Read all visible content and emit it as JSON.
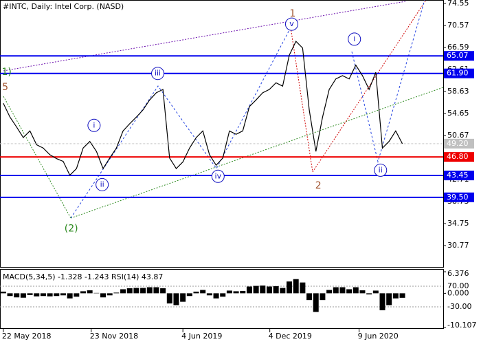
{
  "chart_data": {
    "type": "line",
    "title": "#INTC, Daily:  Intel Corp. (NASD)",
    "x": [
      "2018-05-22",
      "2018-06-05",
      "2018-06-19",
      "2018-07-03",
      "2018-07-17",
      "2018-07-31",
      "2018-08-14",
      "2018-08-28",
      "2018-09-11",
      "2018-09-25",
      "2018-10-09",
      "2018-10-23",
      "2018-11-06",
      "2018-11-20",
      "2018-12-04",
      "2018-12-18",
      "2019-01-01",
      "2019-01-15",
      "2019-01-29",
      "2019-02-12",
      "2019-02-26",
      "2019-03-12",
      "2019-03-26",
      "2019-04-09",
      "2019-04-23",
      "2019-05-07",
      "2019-05-21",
      "2019-06-04",
      "2019-06-18",
      "2019-07-02",
      "2019-07-16",
      "2019-07-30",
      "2019-08-13",
      "2019-08-27",
      "2019-09-10",
      "2019-09-24",
      "2019-10-08",
      "2019-10-22",
      "2019-11-05",
      "2019-11-19",
      "2019-12-03",
      "2019-12-17",
      "2019-12-31",
      "2020-01-14",
      "2020-01-28",
      "2020-02-11",
      "2020-02-25",
      "2020-03-10",
      "2020-03-24",
      "2020-04-07",
      "2020-04-21",
      "2020-05-05",
      "2020-05-19",
      "2020-06-02",
      "2020-06-16",
      "2020-06-30",
      "2020-07-14",
      "2020-07-28",
      "2020-08-11",
      "2020-08-25",
      "2020-09-08"
    ],
    "series": [
      {
        "name": "INTC",
        "color": "#000000",
        "values": [
          56.5,
          54,
          52.2,
          50.3,
          51.5,
          49,
          48.4,
          47.2,
          46.5,
          46,
          43.5,
          44.7,
          48.4,
          49.6,
          47.8,
          44.7,
          46.6,
          48.4,
          51.5,
          52.8,
          54,
          55.3,
          57.1,
          58.4,
          59,
          46.6,
          44.7,
          45.9,
          48.4,
          50.3,
          51.5,
          47.2,
          45.3,
          46.6,
          51.5,
          50.9,
          51.5,
          55.9,
          57.1,
          58.4,
          59,
          60.2,
          59.6,
          65.2,
          67.7,
          66.5,
          55.3,
          47.8,
          54,
          59,
          60.9,
          61.5,
          60.9,
          63.4,
          61.5,
          59,
          62.1,
          48.4,
          49.6,
          51.5,
          49.2
        ]
      }
    ],
    "xlim": [
      "2018-05-15",
      "2020-12-03"
    ],
    "xticks": [
      {
        "value": "2018-05-22",
        "label": "22 May 2018"
      },
      {
        "value": "2018-11-23",
        "label": "23 Nov 2018"
      },
      {
        "value": "2019-06-04",
        "label": "4 Jun 2019"
      },
      {
        "value": "2019-12-04",
        "label": "4 Dec 2019"
      },
      {
        "value": "2020-06-09",
        "label": "9 Jun 2020"
      }
    ],
    "ylim": [
      27.04,
      75.17
    ],
    "yticks": [
      74.55,
      70.57,
      66.59,
      62.61,
      58.63,
      54.65,
      50.67,
      46.69,
      42.71,
      38.73,
      34.75,
      30.77
    ],
    "levels": [
      {
        "value": 65.07,
        "label": "65.07",
        "color": "#0000ee"
      },
      {
        "value": 61.9,
        "label": "61.90",
        "color": "#0000ee"
      },
      {
        "value": 46.8,
        "label": "46.80",
        "color": "#ee0000"
      },
      {
        "value": 43.45,
        "label": "43.45",
        "color": "#0000ee"
      },
      {
        "value": 39.5,
        "label": "39.50",
        "color": "#0000ee"
      }
    ],
    "current_price": {
      "value": 49.2,
      "label": "49.20",
      "color": "#c0c0c0"
    },
    "annotations": [
      {
        "text": "1",
        "x": "2020-01-21",
        "y": 72.7,
        "color": "#a0522d",
        "circled": false
      },
      {
        "text": "2",
        "x": "2020-03-15",
        "y": 41.6,
        "color": "#a0522d",
        "circled": false
      },
      {
        "text": "5",
        "x": "2018-05-26",
        "y": 59.4,
        "color": "#a0522d",
        "circled": false
      },
      {
        "text": "1)",
        "x": "2018-05-29",
        "y": 62.1,
        "color": "#2e8b20",
        "circled": false
      },
      {
        "text": "(2)",
        "x": "2018-10-12",
        "y": 33.8,
        "color": "#2e8b20",
        "circled": false
      },
      {
        "text": "i",
        "x": "2018-11-29",
        "y": 52.5,
        "color": "#1010c0",
        "circled": true
      },
      {
        "text": "ii",
        "x": "2018-12-16",
        "y": 41.8,
        "color": "#1010c0",
        "circled": true
      },
      {
        "text": "iii",
        "x": "2019-04-12",
        "y": 61.9,
        "color": "#1010c0",
        "circled": true
      },
      {
        "text": "iv",
        "x": "2019-08-17",
        "y": 43.3,
        "color": "#1010c0",
        "circled": true
      },
      {
        "text": "v",
        "x": "2020-01-19",
        "y": 70.8,
        "color": "#1010c0",
        "circled": true
      },
      {
        "text": "i",
        "x": "2020-05-30",
        "y": 68.1,
        "color": "#1010c0",
        "circled": true
      },
      {
        "text": "ii",
        "x": "2020-07-24",
        "y": 44.4,
        "color": "#1010c0",
        "circled": true
      }
    ],
    "indicator": {
      "label": "MACD(5,34,5) -1.328 -1.243 RSI(14) 43.87",
      "color": "#000000",
      "values": [
        0.5,
        -0.8,
        -1.2,
        -1.3,
        -0.5,
        -0.9,
        -0.8,
        -0.9,
        -0.8,
        -0.6,
        -1.5,
        -1.0,
        0.6,
        0.9,
        0.1,
        -1.2,
        -0.6,
        0.2,
        1.2,
        1.5,
        1.6,
        1.6,
        1.8,
        1.8,
        1.5,
        -3.0,
        -3.5,
        -2.5,
        -0.8,
        0.5,
        1.0,
        -0.6,
        -1.5,
        -1.0,
        0.8,
        0.6,
        0.7,
        2.0,
        2.2,
        2.3,
        2.0,
        2.1,
        1.6,
        3.5,
        4.2,
        3.2,
        -2.0,
        -5.5,
        -2.0,
        1.0,
        1.8,
        1.8,
        1.2,
        1.8,
        0.9,
        -0.3,
        0.8,
        -5.0,
        -3.5,
        -1.5,
        -1.328
      ],
      "ylim": [
        -10.107,
        6.376
      ],
      "yticks": [
        {
          "value": 6.376,
          "label": "6.376"
        },
        {
          "value": 0,
          "label": "0.000"
        },
        {
          "value": -10.107,
          "label": "-10.107"
        }
      ],
      "level_labels": [
        "70.00",
        "-30.00"
      ]
    }
  }
}
